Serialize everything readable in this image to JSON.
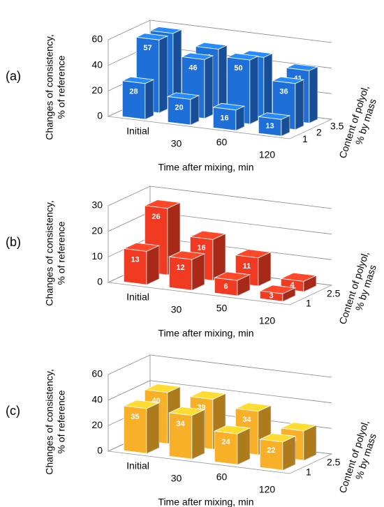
{
  "chart_data": [
    {
      "type": "bar3d",
      "panel_label": "(a)",
      "color": "#1f6fd8",
      "ylabel": [
        "Changes of consistency,",
        "% of reference"
      ],
      "xlabel": "Time after mixing, min",
      "zlabel": [
        "Content of polyol,",
        "% by mass"
      ],
      "categories": [
        "Initial",
        "30",
        "60",
        "120"
      ],
      "ylim": [
        0,
        60
      ],
      "yticks": [
        0,
        20,
        40,
        60
      ],
      "grid": true,
      "series": [
        {
          "name": "1",
          "values": [
            28,
            20,
            16,
            13
          ]
        },
        {
          "name": "2",
          "values": [
            57,
            46,
            50,
            36
          ]
        },
        {
          "name": "3.5",
          "values": [
            57,
            49,
            47,
            41
          ]
        }
      ]
    },
    {
      "type": "bar3d",
      "panel_label": "(b)",
      "color": "#f03a22",
      "ylabel": [
        "Changes of consistency,",
        "% of reference"
      ],
      "xlabel": "Time after mixing, min",
      "zlabel": [
        "Content of polyol,",
        "% by mass"
      ],
      "categories": [
        "Initial",
        "30",
        "50",
        "120"
      ],
      "ylim": [
        0,
        30
      ],
      "yticks": [
        0,
        10,
        20,
        30
      ],
      "grid": true,
      "series": [
        {
          "name": "1",
          "values": [
            13,
            12,
            6,
            3
          ]
        },
        {
          "name": "2.5",
          "values": [
            26,
            16,
            11,
            4
          ]
        }
      ]
    },
    {
      "type": "bar3d",
      "panel_label": "(c)",
      "color": "#f7b028",
      "ylabel": [
        "Changes of consistency,",
        "% of reference"
      ],
      "xlabel": "Time after mixing, min",
      "zlabel": [
        "Content of polyol,",
        "% by mass"
      ],
      "categories": [
        "Initial",
        "30",
        "60",
        "120"
      ],
      "ylim": [
        0,
        60
      ],
      "yticks": [
        0,
        20,
        40,
        60
      ],
      "grid": true,
      "series": [
        {
          "name": "1",
          "values": [
            35,
            34,
            24,
            22
          ]
        },
        {
          "name": "2.5",
          "values": [
            40,
            39,
            34,
            23
          ]
        }
      ]
    }
  ]
}
